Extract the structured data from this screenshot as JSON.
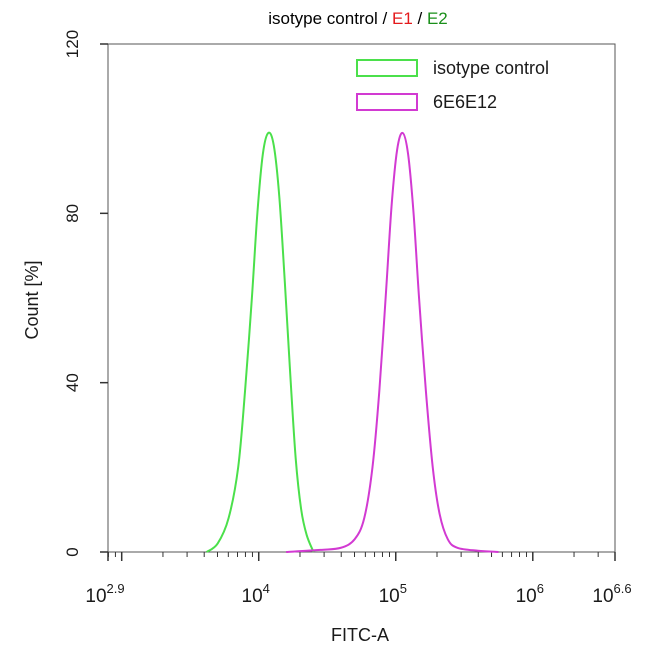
{
  "chart_data": {
    "type": "histogram",
    "title_parts": [
      {
        "text": "isotype control / ",
        "color": "#000000"
      },
      {
        "text": "E1",
        "color": "#e41a1c"
      },
      {
        "text": " / ",
        "color": "#000000"
      },
      {
        "text": "E2",
        "color": "#1a8f1a"
      }
    ],
    "xlabel": "FITC-A",
    "ylabel": "Count [%]",
    "x_scale": "log",
    "xlim": [
      2.9,
      6.6
    ],
    "ylim": [
      0,
      120
    ],
    "y_ticks": [
      0,
      40,
      80,
      120
    ],
    "x_ticks": [
      {
        "exp": 2.9,
        "base": "10",
        "sup": "2.9"
      },
      {
        "exp": 4,
        "base": "10",
        "sup": "4"
      },
      {
        "exp": 5,
        "base": "10",
        "sup": "5"
      },
      {
        "exp": 6,
        "base": "10",
        "sup": "6"
      },
      {
        "exp": 6.6,
        "base": "10",
        "sup": "6.6"
      }
    ],
    "legend_position": "top-right",
    "series": [
      {
        "name": "isotype control",
        "color": "#4be04b",
        "points": [
          [
            3.62,
            0
          ],
          [
            3.7,
            2
          ],
          [
            3.78,
            8
          ],
          [
            3.85,
            20
          ],
          [
            3.9,
            38
          ],
          [
            3.95,
            60
          ],
          [
            3.99,
            80
          ],
          [
            4.03,
            94
          ],
          [
            4.07,
            99
          ],
          [
            4.11,
            96
          ],
          [
            4.15,
            84
          ],
          [
            4.19,
            64
          ],
          [
            4.23,
            42
          ],
          [
            4.27,
            22
          ],
          [
            4.31,
            10
          ],
          [
            4.35,
            4
          ],
          [
            4.4,
            0
          ]
        ]
      },
      {
        "name": "6E6E12",
        "color": "#d23ad2",
        "points": [
          [
            4.2,
            0
          ],
          [
            4.45,
            0.5
          ],
          [
            4.6,
            1
          ],
          [
            4.7,
            3
          ],
          [
            4.77,
            8
          ],
          [
            4.83,
            20
          ],
          [
            4.88,
            38
          ],
          [
            4.93,
            62
          ],
          [
            4.97,
            82
          ],
          [
            5.01,
            95
          ],
          [
            5.05,
            99
          ],
          [
            5.09,
            94
          ],
          [
            5.13,
            80
          ],
          [
            5.17,
            60
          ],
          [
            5.22,
            38
          ],
          [
            5.27,
            20
          ],
          [
            5.32,
            9
          ],
          [
            5.38,
            3
          ],
          [
            5.45,
            1
          ],
          [
            5.6,
            0.3
          ],
          [
            5.75,
            0
          ]
        ]
      }
    ]
  }
}
